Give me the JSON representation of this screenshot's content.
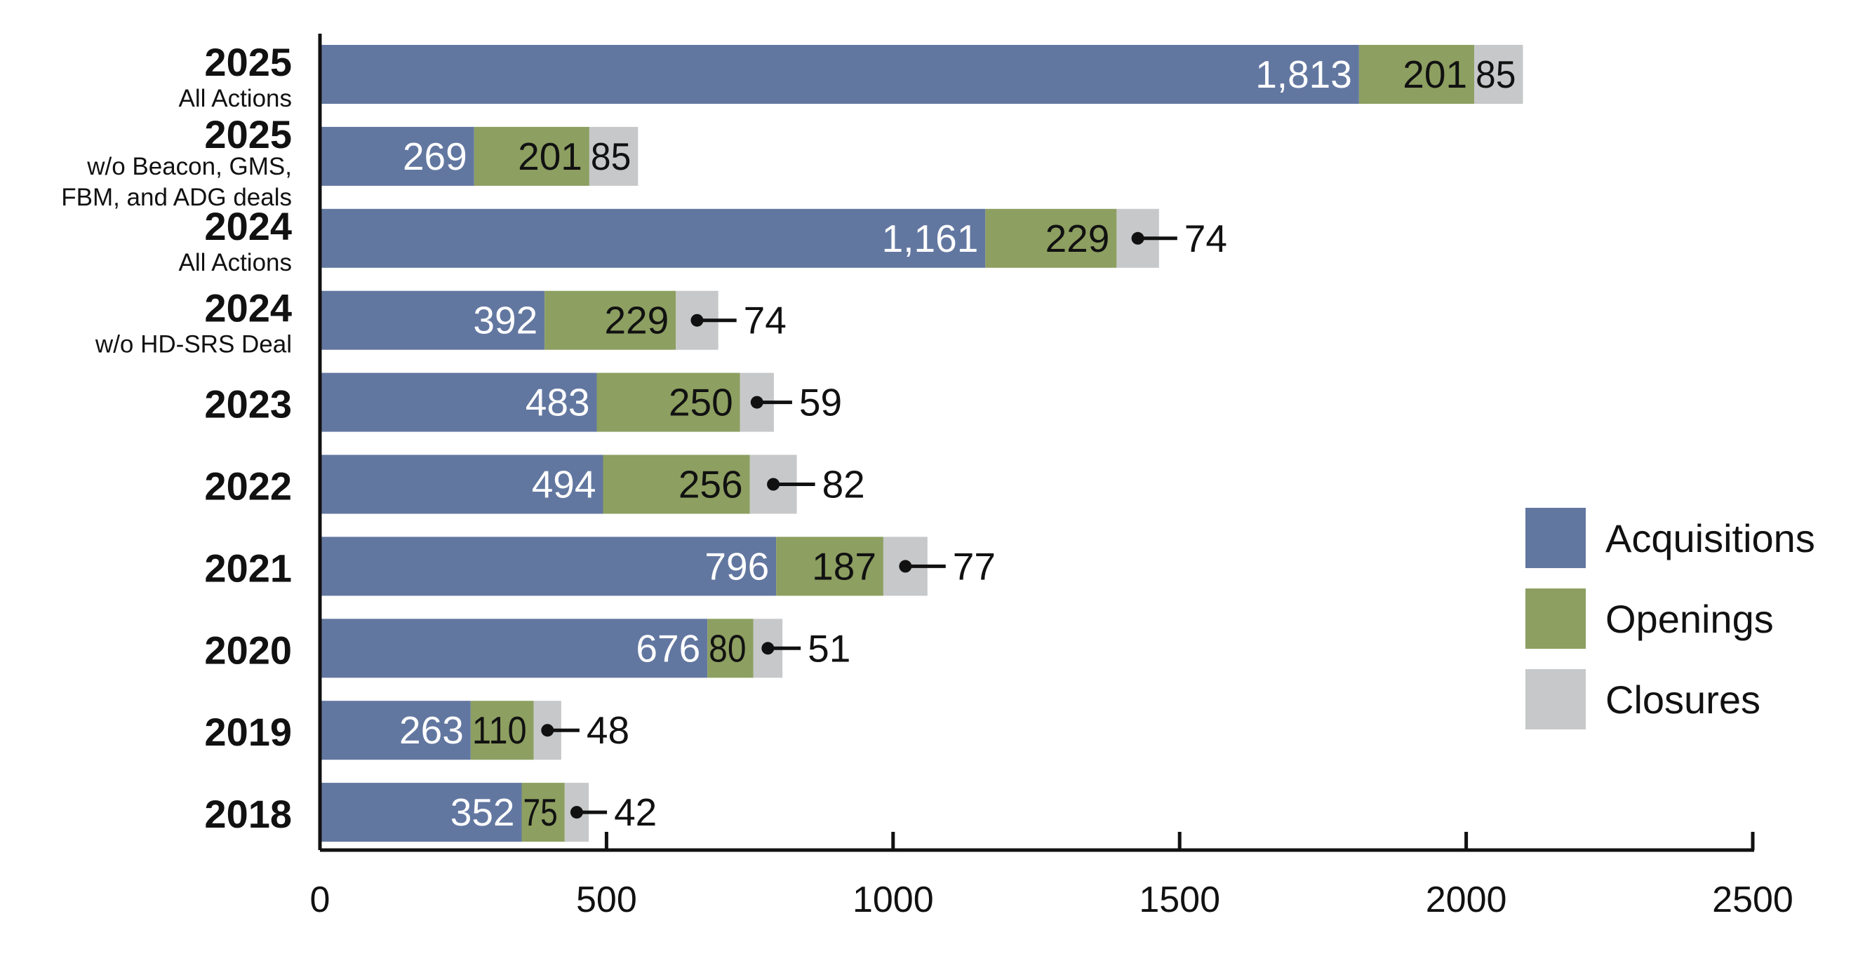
{
  "chart_data": {
    "type": "bar",
    "orientation": "horizontal",
    "stacked": true,
    "categories": [
      {
        "year": "2025",
        "note": "All Actions"
      },
      {
        "year": "2025",
        "note": "w/o Beacon, GMS,|FBM, and ADG deals"
      },
      {
        "year": "2024",
        "note": "All Actions"
      },
      {
        "year": "2024",
        "note": "w/o HD-SRS Deal"
      },
      {
        "year": "2023",
        "note": ""
      },
      {
        "year": "2022",
        "note": ""
      },
      {
        "year": "2021",
        "note": ""
      },
      {
        "year": "2020",
        "note": ""
      },
      {
        "year": "2019",
        "note": ""
      },
      {
        "year": "2018",
        "note": ""
      }
    ],
    "series": [
      {
        "name": "Acquisitions",
        "color": "#6277a0",
        "label_color": "#ffffff",
        "values": [
          1813,
          269,
          1161,
          392,
          483,
          494,
          796,
          676,
          263,
          352
        ],
        "labels": [
          "1,813",
          "269",
          "1,161",
          "392",
          "483",
          "494",
          "796",
          "676",
          "263",
          "352"
        ]
      },
      {
        "name": "Openings",
        "color": "#8d9f61",
        "label_color": "#111111",
        "values": [
          201,
          201,
          229,
          229,
          250,
          256,
          187,
          80,
          110,
          75
        ],
        "labels": [
          "201",
          "201",
          "229",
          "229",
          "250",
          "256",
          "187",
          "80",
          "110",
          "75"
        ]
      },
      {
        "name": "Closures",
        "color": "#c6c8c9",
        "label_color": "#111111",
        "values": [
          85,
          85,
          74,
          74,
          59,
          82,
          77,
          51,
          48,
          42
        ],
        "labels": [
          "85",
          "85",
          "74",
          "74",
          "59",
          "82",
          "77",
          "51",
          "48",
          "42"
        ],
        "label_outside": [
          false,
          false,
          true,
          true,
          true,
          true,
          true,
          true,
          true,
          true
        ]
      }
    ],
    "xlim": [
      0,
      2500
    ],
    "xticks": [
      0,
      500,
      1000,
      1500,
      2000,
      2500
    ],
    "xtick_labels": [
      "0",
      "500",
      "1000",
      "1500",
      "2000",
      "2500"
    ],
    "grid": false,
    "legend": {
      "position": "right"
    }
  }
}
